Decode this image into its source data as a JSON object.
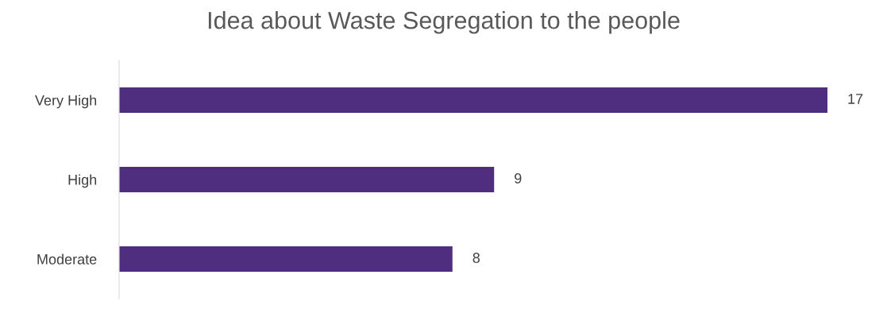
{
  "chart_data": {
    "type": "bar",
    "orientation": "horizontal",
    "title": "Idea about Waste Segregation to the people",
    "categories": [
      "Very High",
      "High",
      "Moderate"
    ],
    "values": [
      17,
      9,
      8
    ],
    "color": "#4f2d7f",
    "data_labels": true,
    "grid": false,
    "legend": false,
    "tick_labels": "y"
  }
}
